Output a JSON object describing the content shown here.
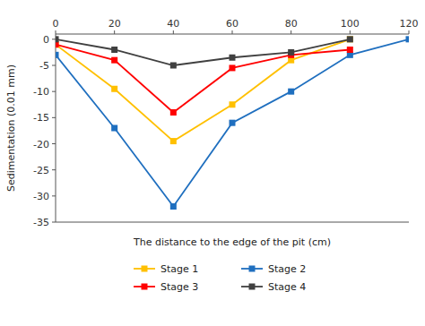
{
  "chart_data": {
    "type": "line",
    "x": [
      0,
      20,
      40,
      60,
      80,
      100,
      120
    ],
    "series": [
      {
        "name": "Stage 1",
        "color": "#FFC000",
        "marker": "square",
        "values": [
          -1,
          -9.5,
          -19.5,
          -12.5,
          -4,
          0,
          null
        ]
      },
      {
        "name": "Stage 2",
        "color": "#1F6FBF",
        "marker": "square",
        "values": [
          -3,
          -17,
          -32,
          -16,
          -10,
          -3,
          0
        ]
      },
      {
        "name": "Stage 3",
        "color": "#FF0000",
        "marker": "square",
        "values": [
          -1,
          -4,
          -14,
          -5.5,
          -3,
          -2,
          null
        ]
      },
      {
        "name": "Stage 4",
        "color": "#404040",
        "marker": "square",
        "values": [
          0,
          -2,
          -5,
          -3.5,
          -2.5,
          0,
          null
        ]
      }
    ],
    "xlabel": "The distance to the edge of the pit (cm)",
    "ylabel": "Sedimentation (0.01 mm)",
    "xlim": [
      0,
      120
    ],
    "ylim": [
      -35,
      1
    ],
    "xticks": [
      0,
      20,
      40,
      60,
      80,
      100,
      120
    ],
    "yticks": [
      0,
      -5,
      -10,
      -15,
      -20,
      -25,
      -30,
      -35
    ],
    "grid": false,
    "legend": "bottom"
  }
}
